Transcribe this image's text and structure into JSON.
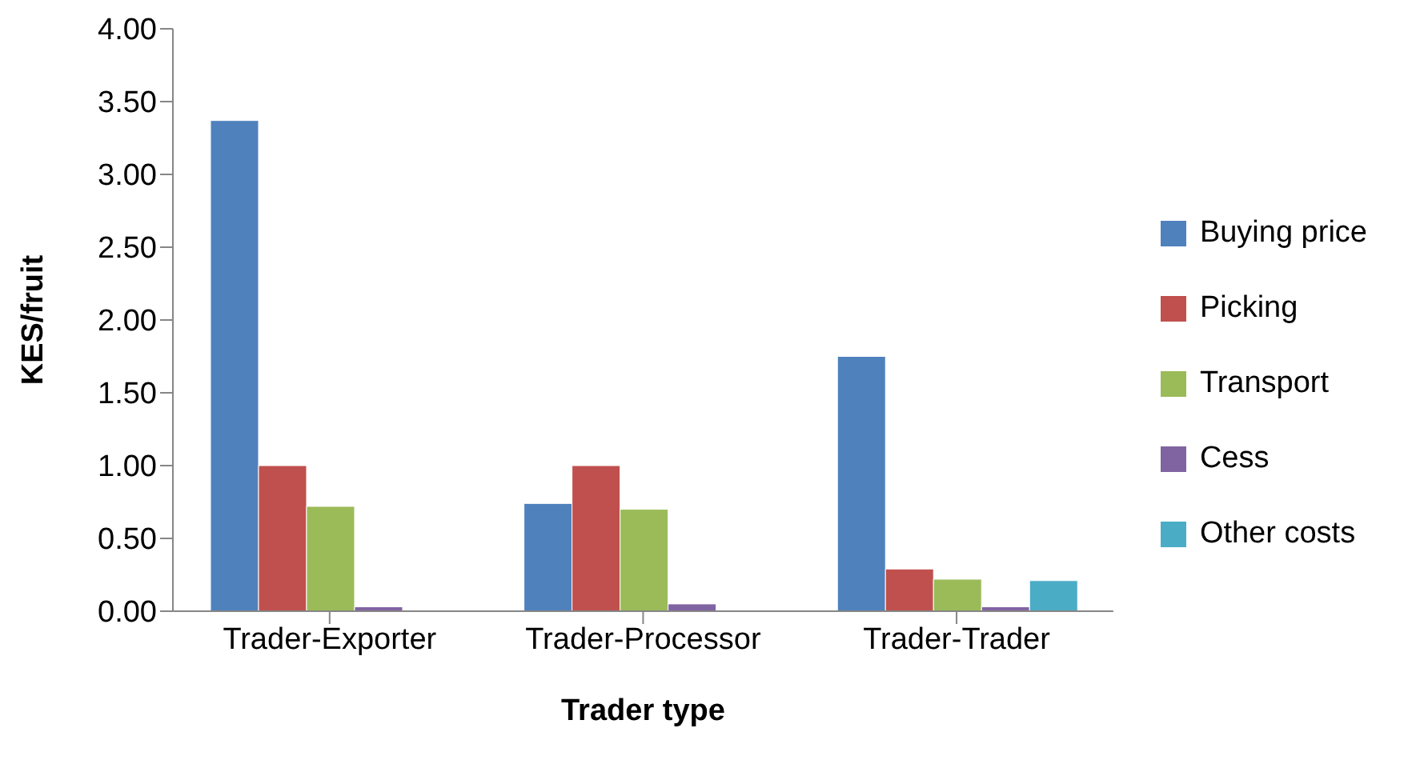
{
  "chart_data": {
    "type": "bar",
    "xlabel": "Trader type",
    "ylabel": "KES/fruit",
    "categories": [
      "Trader-Exporter",
      "Trader-Processor",
      "Trader-Trader"
    ],
    "series": [
      {
        "name": "Buying price",
        "color": "#4f81bd",
        "values": [
          3.37,
          0.74,
          1.75
        ]
      },
      {
        "name": "Picking",
        "color": "#c0504d",
        "values": [
          1.0,
          1.0,
          0.29
        ]
      },
      {
        "name": "Transport",
        "color": "#9bbb59",
        "values": [
          0.72,
          0.7,
          0.22
        ]
      },
      {
        "name": "Cess",
        "color": "#8064a2",
        "values": [
          0.03,
          0.05,
          0.03
        ]
      },
      {
        "name": "Other costs",
        "color": "#4bacc6",
        "values": [
          null,
          null,
          0.21
        ]
      }
    ],
    "ylim": [
      0,
      4
    ],
    "yticks": [
      {
        "value": 0,
        "label": "0.00"
      },
      {
        "value": 0.5,
        "label": "0.50"
      },
      {
        "value": 1,
        "label": "1.00"
      },
      {
        "value": 1.5,
        "label": "1.50"
      },
      {
        "value": 2,
        "label": "2.00"
      },
      {
        "value": 2.5,
        "label": "2.50"
      },
      {
        "value": 3,
        "label": "3.00"
      },
      {
        "value": 3.5,
        "label": "3.50"
      },
      {
        "value": 4,
        "label": "4.00"
      }
    ],
    "grid": false,
    "legend": "right"
  }
}
